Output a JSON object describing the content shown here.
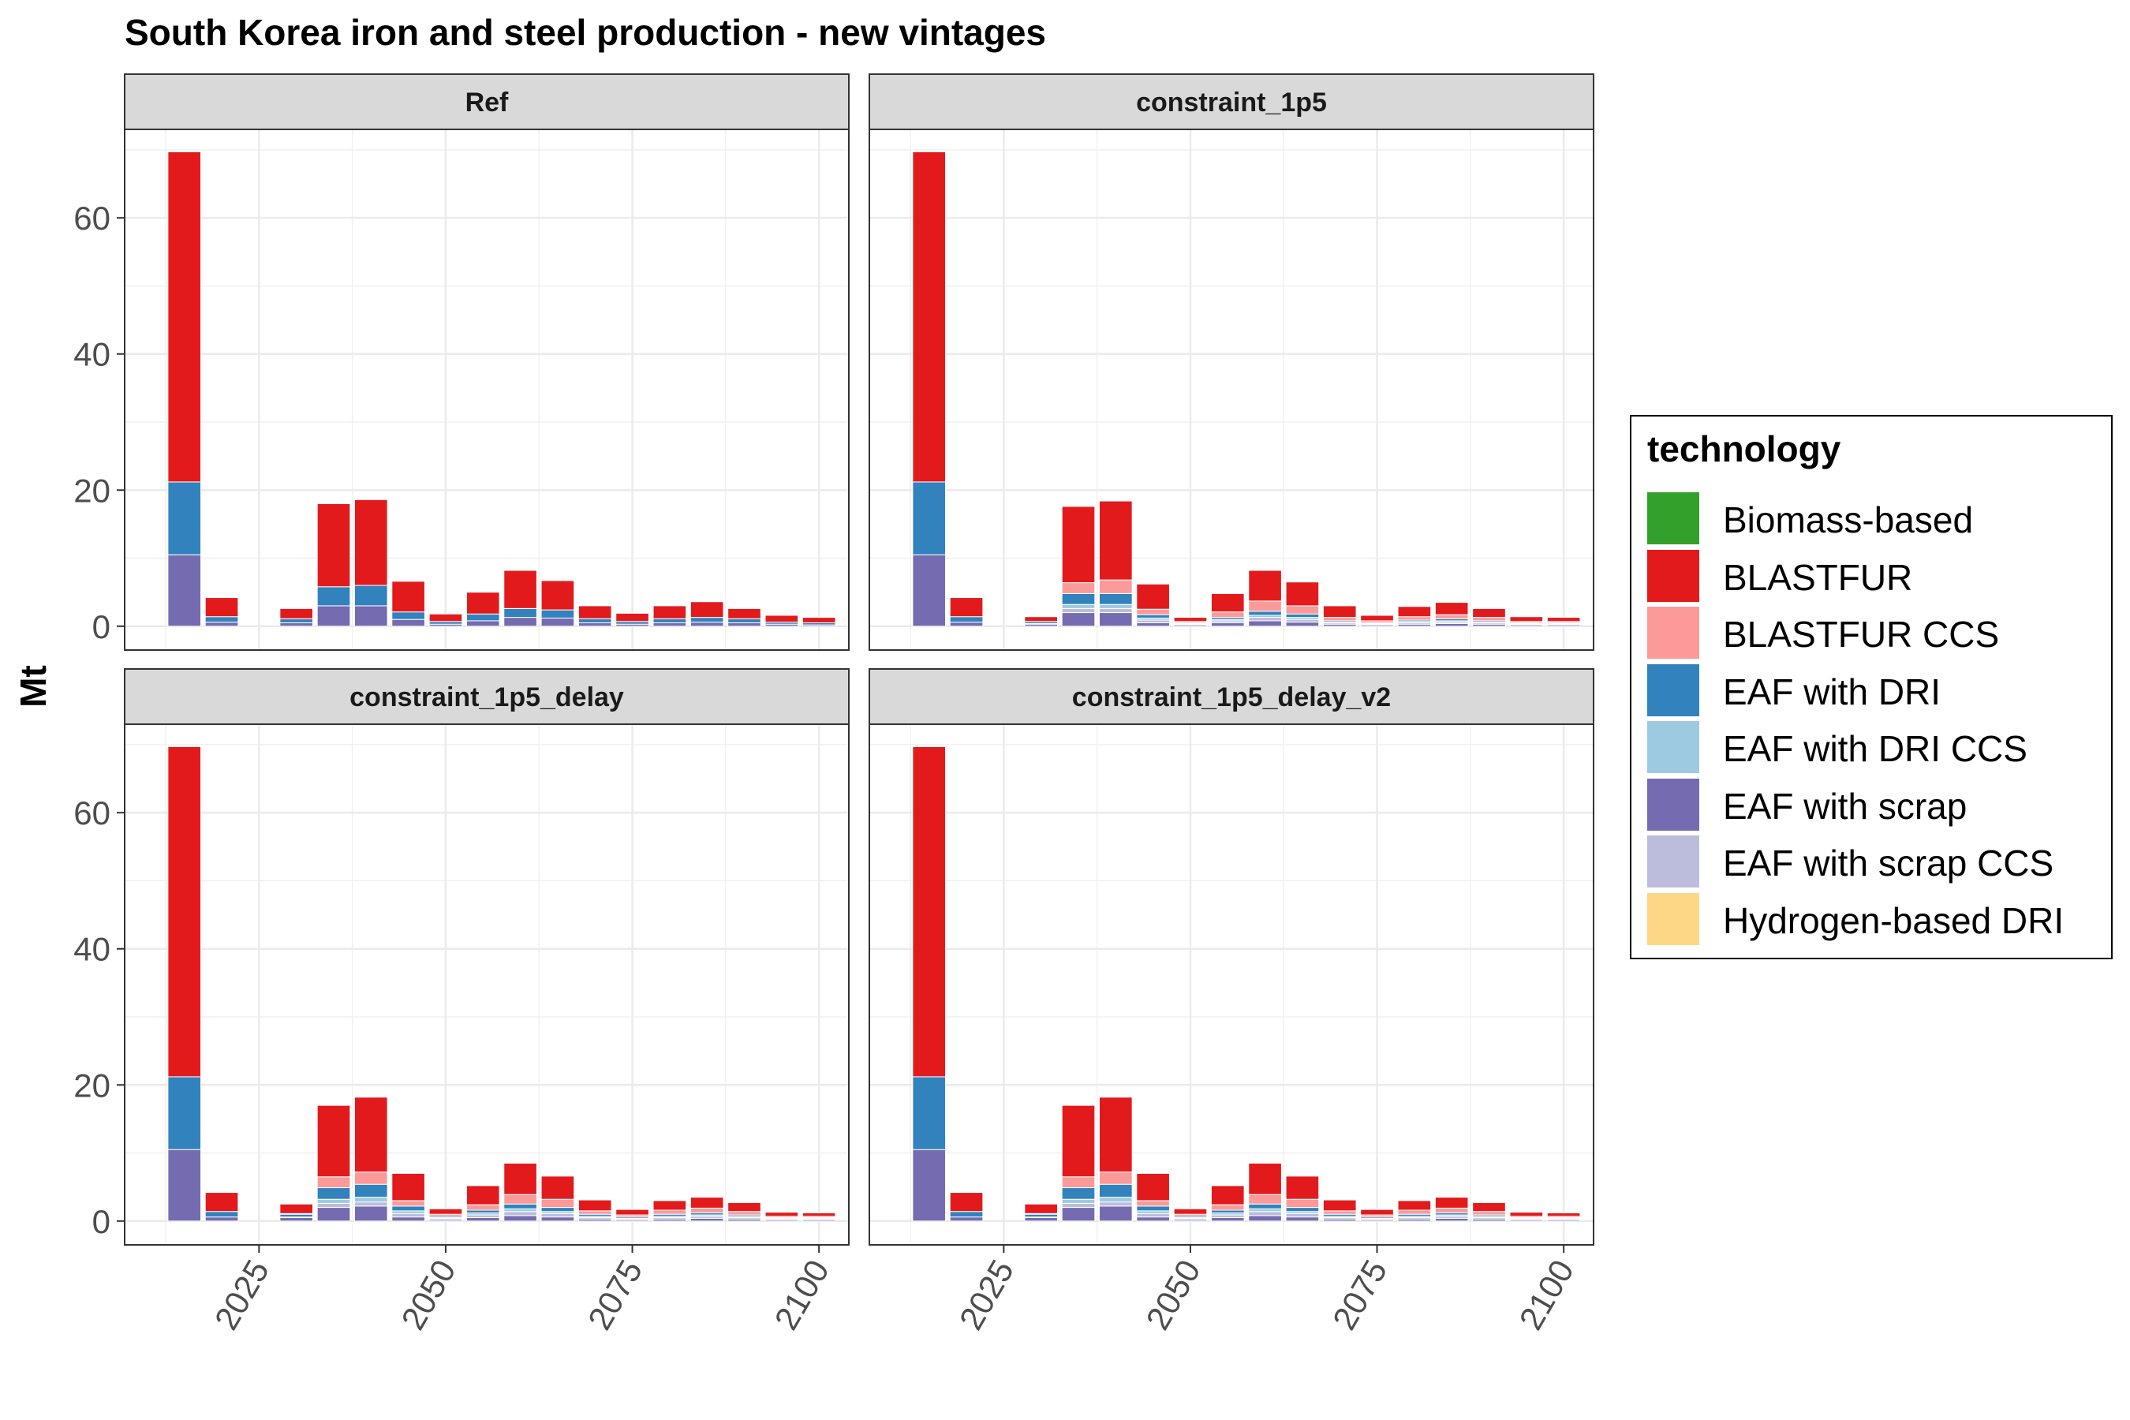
{
  "chart_data": {
    "type": "bar",
    "stacked": true,
    "title": "South Korea  iron and steel production - new vintages",
    "ylabel": "Mt",
    "xlabel": "",
    "ylim": [
      -3.5,
      73
    ],
    "xlim": [
      2007,
      2104
    ],
    "y_ticks": [
      0,
      20,
      40,
      60
    ],
    "x_ticks": [
      2025,
      2050,
      2075,
      2100
    ],
    "grid": true,
    "legend": {
      "title": "technology",
      "position": "right"
    },
    "technologies": [
      {
        "name": "Biomass-based",
        "color": "#33a02c"
      },
      {
        "name": "BLASTFUR",
        "color": "#e31a1c"
      },
      {
        "name": "BLASTFUR CCS",
        "color": "#fb9a99"
      },
      {
        "name": "EAF with DRI",
        "color": "#3182bd"
      },
      {
        "name": "EAF with DRI CCS",
        "color": "#9ecae1"
      },
      {
        "name": "EAF with scrap",
        "color": "#756bb1"
      },
      {
        "name": "EAF with scrap CCS",
        "color": "#bcbddc"
      },
      {
        "name": "Hydrogen-based DRI",
        "color": "#fdd686"
      }
    ],
    "x": [
      2015,
      2020,
      2030,
      2035,
      2040,
      2045,
      2050,
      2055,
      2060,
      2065,
      2070,
      2075,
      2080,
      2085,
      2090,
      2095,
      2100
    ],
    "panels": [
      {
        "name": "Ref",
        "series": [
          {
            "name": "EAF with scrap",
            "values": [
              10.5,
              0.6,
              0.5,
              3.0,
              3.0,
              1.0,
              0.3,
              0.8,
              1.3,
              1.2,
              0.5,
              0.3,
              0.5,
              0.6,
              0.5,
              0.3,
              0.2
            ]
          },
          {
            "name": "EAF with DRI",
            "values": [
              10.7,
              0.8,
              0.6,
              2.8,
              3.0,
              1.1,
              0.4,
              1.0,
              1.3,
              1.2,
              0.6,
              0.4,
              0.6,
              0.7,
              0.6,
              0.3,
              0.3
            ]
          },
          {
            "name": "BLASTFUR",
            "values": [
              48.5,
              2.8,
              1.5,
              12.2,
              12.6,
              4.5,
              1.1,
              3.2,
              5.6,
              4.3,
              1.9,
              1.2,
              1.9,
              2.3,
              1.5,
              1.0,
              0.8
            ]
          }
        ]
      },
      {
        "name": "constraint_1p5",
        "series": [
          {
            "name": "EAF with scrap",
            "values": [
              10.5,
              0.6,
              0.3,
              2.0,
              2.0,
              0.5,
              0.2,
              0.5,
              0.8,
              0.6,
              0.3,
              0.2,
              0.3,
              0.4,
              0.3,
              0.2,
              0.2
            ]
          },
          {
            "name": "EAF with scrap CCS",
            "values": [
              0,
              0,
              0.1,
              0.6,
              0.6,
              0.4,
              0.1,
              0.3,
              0.5,
              0.4,
              0.2,
              0.1,
              0.2,
              0.2,
              0.2,
              0.1,
              0.1
            ]
          },
          {
            "name": "EAF with DRI CCS",
            "values": [
              0,
              0,
              0,
              0.6,
              0.6,
              0.3,
              0.1,
              0.2,
              0.3,
              0.3,
              0.1,
              0.1,
              0.2,
              0.2,
              0.1,
              0.1,
              0.1
            ]
          },
          {
            "name": "EAF with DRI",
            "values": [
              10.7,
              0.8,
              0.3,
              1.6,
              1.6,
              0.5,
              0.1,
              0.3,
              0.6,
              0.5,
              0.2,
              0.1,
              0.2,
              0.3,
              0.2,
              0.1,
              0.1
            ]
          },
          {
            "name": "BLASTFUR CCS",
            "values": [
              0,
              0,
              0,
              1.6,
              2.0,
              0.8,
              0.2,
              0.8,
              1.5,
              1.2,
              0.5,
              0.3,
              0.5,
              0.6,
              0.5,
              0.2,
              0.2
            ]
          },
          {
            "name": "BLASTFUR",
            "values": [
              48.5,
              2.8,
              0.7,
              11.2,
              11.6,
              3.7,
              0.6,
              2.7,
              4.5,
              3.5,
              1.7,
              0.8,
              1.5,
              1.8,
              1.3,
              0.7,
              0.6
            ]
          }
        ]
      },
      {
        "name": "constraint_1p5_delay",
        "series": [
          {
            "name": "EAF with scrap",
            "values": [
              10.5,
              0.6,
              0.5,
              2.0,
              2.2,
              0.6,
              0.2,
              0.5,
              0.8,
              0.6,
              0.3,
              0.2,
              0.3,
              0.4,
              0.3,
              0.2,
              0.2
            ]
          },
          {
            "name": "EAF with scrap CCS",
            "values": [
              0,
              0,
              0.1,
              0.6,
              0.6,
              0.5,
              0.2,
              0.4,
              0.6,
              0.5,
              0.2,
              0.1,
              0.2,
              0.3,
              0.2,
              0.1,
              0.1
            ]
          },
          {
            "name": "EAF with DRI CCS",
            "values": [
              0,
              0,
              0,
              0.6,
              0.7,
              0.4,
              0.1,
              0.3,
              0.4,
              0.3,
              0.2,
              0.1,
              0.2,
              0.2,
              0.2,
              0.1,
              0.1
            ]
          },
          {
            "name": "EAF with DRI",
            "values": [
              10.7,
              0.8,
              0.4,
              1.7,
              1.9,
              0.7,
              0.2,
              0.4,
              0.7,
              0.6,
              0.3,
              0.2,
              0.3,
              0.3,
              0.2,
              0.1,
              0.1
            ]
          },
          {
            "name": "BLASTFUR CCS",
            "values": [
              0,
              0,
              0.1,
              1.6,
              1.8,
              0.8,
              0.3,
              0.8,
              1.4,
              1.2,
              0.5,
              0.3,
              0.6,
              0.7,
              0.5,
              0.2,
              0.2
            ]
          },
          {
            "name": "BLASTFUR",
            "values": [
              48.5,
              2.8,
              1.4,
              10.5,
              11.0,
              4.0,
              0.8,
              2.8,
              4.6,
              3.4,
              1.6,
              0.8,
              1.4,
              1.6,
              1.3,
              0.6,
              0.5
            ]
          }
        ]
      },
      {
        "name": "constraint_1p5_delay_v2",
        "series": [
          {
            "name": "EAF with scrap",
            "values": [
              10.5,
              0.6,
              0.5,
              2.0,
              2.2,
              0.6,
              0.2,
              0.5,
              0.8,
              0.6,
              0.3,
              0.2,
              0.3,
              0.4,
              0.3,
              0.2,
              0.2
            ]
          },
          {
            "name": "EAF with scrap CCS",
            "values": [
              0,
              0,
              0.1,
              0.6,
              0.6,
              0.5,
              0.2,
              0.4,
              0.6,
              0.5,
              0.2,
              0.1,
              0.2,
              0.3,
              0.2,
              0.1,
              0.1
            ]
          },
          {
            "name": "EAF with DRI CCS",
            "values": [
              0,
              0,
              0,
              0.6,
              0.7,
              0.4,
              0.1,
              0.3,
              0.4,
              0.3,
              0.2,
              0.1,
              0.2,
              0.2,
              0.2,
              0.1,
              0.1
            ]
          },
          {
            "name": "EAF with DRI",
            "values": [
              10.7,
              0.8,
              0.4,
              1.7,
              1.9,
              0.7,
              0.2,
              0.4,
              0.7,
              0.6,
              0.3,
              0.2,
              0.3,
              0.3,
              0.2,
              0.1,
              0.1
            ]
          },
          {
            "name": "BLASTFUR CCS",
            "values": [
              0,
              0,
              0.1,
              1.6,
              1.8,
              0.8,
              0.3,
              0.8,
              1.4,
              1.2,
              0.5,
              0.3,
              0.6,
              0.7,
              0.5,
              0.2,
              0.2
            ]
          },
          {
            "name": "BLASTFUR",
            "values": [
              48.5,
              2.8,
              1.4,
              10.5,
              11.0,
              4.0,
              0.8,
              2.8,
              4.6,
              3.4,
              1.6,
              0.8,
              1.4,
              1.6,
              1.3,
              0.6,
              0.5
            ]
          }
        ]
      }
    ]
  }
}
